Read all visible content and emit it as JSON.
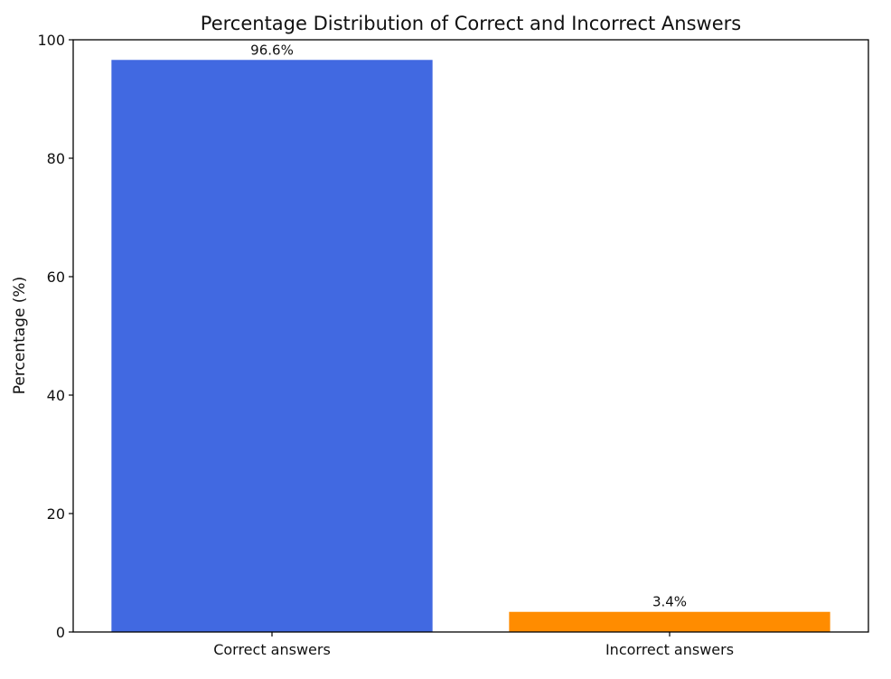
{
  "chart_data": {
    "type": "bar",
    "title": "Percentage Distribution of Correct and Incorrect Answers",
    "xlabel": "",
    "ylabel": "Percentage (%)",
    "categories": [
      "Correct answers",
      "Incorrect answers"
    ],
    "values": [
      96.6,
      3.4
    ],
    "data_labels": [
      "96.6%",
      "3.4%"
    ],
    "colors": [
      "#4169E1",
      "#FF8C00"
    ],
    "ylim": [
      0,
      100
    ],
    "yticks": [
      0,
      20,
      40,
      60,
      80,
      100
    ],
    "grid": false
  }
}
